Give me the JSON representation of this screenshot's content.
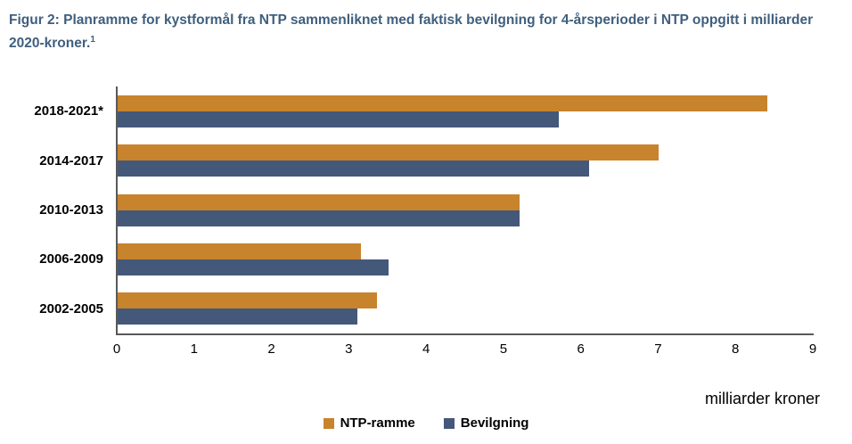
{
  "header": {
    "title_line1": "Figur 2: Planramme for kystformål fra NTP sammenliknet med faktisk bevilgning for 4-årsperioder i NTP oppgitt i milliarder",
    "title_line2": "2020-kroner.",
    "footnote_marker": "1"
  },
  "chart_data": {
    "type": "bar",
    "orientation": "horizontal",
    "title": "Figur 2: Planramme for kystformål fra NTP sammenliknet med faktisk bevilgning for 4-årsperioder i NTP oppgitt i milliarder 2020-kroner.",
    "categories": [
      "2018-2021*",
      "2014-2017",
      "2010-2013",
      "2006-2009",
      "2002-2005"
    ],
    "series": [
      {
        "name": "NTP-ramme",
        "color": "#C8832D",
        "values": [
          8.4,
          7.0,
          5.2,
          3.15,
          3.35
        ]
      },
      {
        "name": "Bevilgning",
        "color": "#44587A",
        "values": [
          5.7,
          6.1,
          5.2,
          3.5,
          3.1
        ]
      }
    ],
    "xlabel": "milliarder kroner",
    "ylabel": "",
    "xlim": [
      0,
      9
    ],
    "x_ticks": [
      0,
      1,
      2,
      3,
      4,
      5,
      6,
      7,
      8,
      9
    ],
    "grid": false,
    "legend_position": "bottom",
    "axis_color": "#595959",
    "title_color": "#3F5F7E"
  }
}
